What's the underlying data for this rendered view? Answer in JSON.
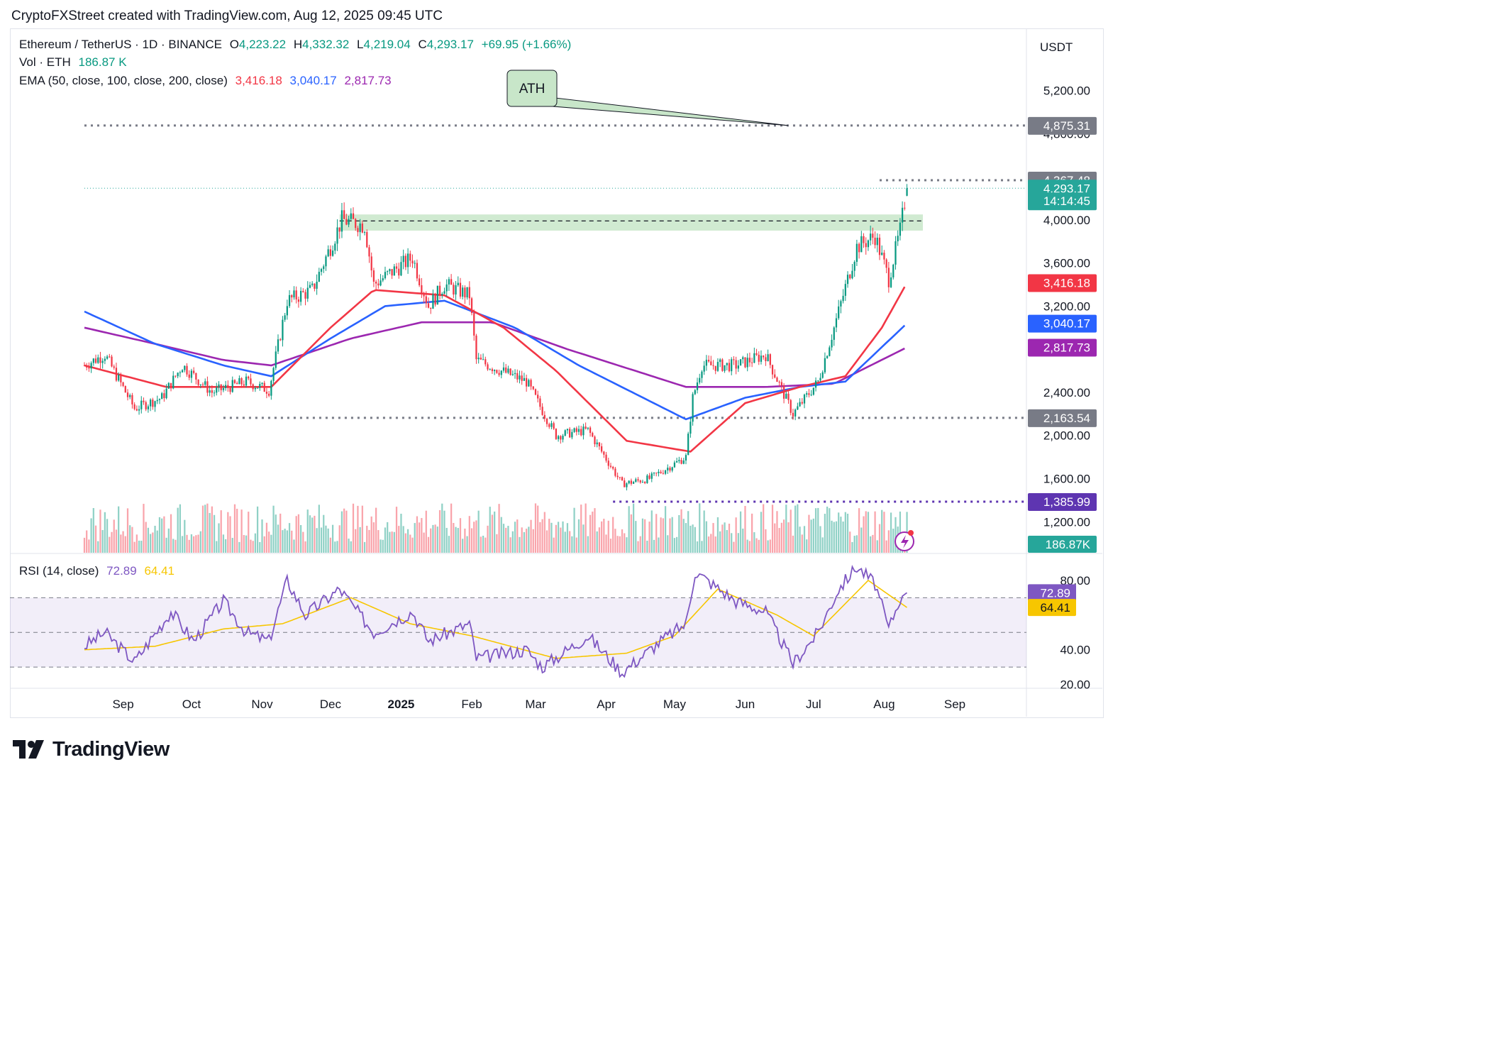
{
  "caption": "CryptoFXStreet created with TradingView.com, Aug 12, 2025 09:45 UTC",
  "legend": {
    "symbol": "Ethereum / TetherUS · 1D · BINANCE",
    "o_label": "O",
    "o_value": "4,223.22",
    "h_label": "H",
    "h_value": "4,332.32",
    "l_label": "L",
    "l_value": "4,219.04",
    "c_label": "C",
    "c_value": "4,293.17",
    "change": "+69.95 (+1.66%)",
    "vol_label": "Vol · ETH",
    "vol_value": "186.87 K",
    "ema_label": "EMA (50, close, 100, close, 200, close)",
    "ema50": "3,416.18",
    "ema100": "3,040.17",
    "ema200": "2,817.73"
  },
  "rsi_legend": {
    "label": "RSI (14, close)",
    "rsi": "72.89",
    "ma": "64.41"
  },
  "currency": "USDT",
  "ath_note": "ATH",
  "footer_logo": "TradingView",
  "colors": {
    "up": "#089981",
    "down": "#f23645",
    "ema50": "#f23645",
    "ema100": "#2962ff",
    "ema200": "#9c27b0",
    "rsi": "#7e57c2",
    "rsi_ma": "#f7c600",
    "zone": "#c8e6c9",
    "gray_label": "#787b86",
    "countdown_bg": "#26a69a"
  },
  "chart_data": {
    "type": "candlestick",
    "symbol": "ETHUSDT",
    "y_ticks": [
      "5,200.00",
      "4,800.00",
      "4,400.00",
      "4,000.00",
      "3,600.00",
      "3,200.00",
      "2,800.00",
      "2,400.00",
      "2,000.00",
      "1,600.00",
      "1,200.00"
    ],
    "x_ticks": [
      "Sep",
      "Oct",
      "Nov",
      "Dec",
      "2025",
      "Feb",
      "Mar",
      "Apr",
      "May",
      "Jun",
      "Jul",
      "Aug",
      "Sep"
    ],
    "ylim": [
      1000,
      5500
    ],
    "close_path": [
      {
        "x": "2024-08-15",
        "y": 2650
      },
      {
        "x": "2024-08-24",
        "y": 2750
      },
      {
        "x": "2024-09-06",
        "y": 2250
      },
      {
        "x": "2024-09-18",
        "y": 2350
      },
      {
        "x": "2024-09-27",
        "y": 2650
      },
      {
        "x": "2024-10-10",
        "y": 2400
      },
      {
        "x": "2024-10-25",
        "y": 2500
      },
      {
        "x": "2024-11-04",
        "y": 2420
      },
      {
        "x": "2024-11-12",
        "y": 3250
      },
      {
        "x": "2024-11-23",
        "y": 3350
      },
      {
        "x": "2024-12-06",
        "y": 4000
      },
      {
        "x": "2024-12-16",
        "y": 3950
      },
      {
        "x": "2024-12-20",
        "y": 3400
      },
      {
        "x": "2025-01-06",
        "y": 3650
      },
      {
        "x": "2025-01-13",
        "y": 3200
      },
      {
        "x": "2025-01-20",
        "y": 3400
      },
      {
        "x": "2025-01-31",
        "y": 3300
      },
      {
        "x": "2025-02-03",
        "y": 2700
      },
      {
        "x": "2025-02-25",
        "y": 2500
      },
      {
        "x": "2025-03-10",
        "y": 2000
      },
      {
        "x": "2025-03-24",
        "y": 2050
      },
      {
        "x": "2025-04-08",
        "y": 1550
      },
      {
        "x": "2025-04-20",
        "y": 1600
      },
      {
        "x": "2025-05-06",
        "y": 1800
      },
      {
        "x": "2025-05-09",
        "y": 2350
      },
      {
        "x": "2025-05-13",
        "y": 2650
      },
      {
        "x": "2025-05-28",
        "y": 2650
      },
      {
        "x": "2025-06-10",
        "y": 2750
      },
      {
        "x": "2025-06-22",
        "y": 2200
      },
      {
        "x": "2025-07-03",
        "y": 2500
      },
      {
        "x": "2025-07-10",
        "y": 3000
      },
      {
        "x": "2025-07-20",
        "y": 3750
      },
      {
        "x": "2025-07-28",
        "y": 3850
      },
      {
        "x": "2025-08-03",
        "y": 3450
      },
      {
        "x": "2025-08-08",
        "y": 3900
      },
      {
        "x": "2025-08-11",
        "y": 4300
      }
    ],
    "ema50": [
      {
        "x": "2024-08-15",
        "y": 2650
      },
      {
        "x": "2024-09-20",
        "y": 2450
      },
      {
        "x": "2024-10-15",
        "y": 2450
      },
      {
        "x": "2024-11-05",
        "y": 2450
      },
      {
        "x": "2024-12-01",
        "y": 3000
      },
      {
        "x": "2024-12-20",
        "y": 3350
      },
      {
        "x": "2025-01-20",
        "y": 3300
      },
      {
        "x": "2025-02-15",
        "y": 3000
      },
      {
        "x": "2025-03-10",
        "y": 2600
      },
      {
        "x": "2025-04-10",
        "y": 1950
      },
      {
        "x": "2025-05-08",
        "y": 1850
      },
      {
        "x": "2025-06-01",
        "y": 2300
      },
      {
        "x": "2025-06-25",
        "y": 2450
      },
      {
        "x": "2025-07-15",
        "y": 2550
      },
      {
        "x": "2025-07-31",
        "y": 3000
      },
      {
        "x": "2025-08-11",
        "y": 3416.18
      }
    ],
    "ema100": [
      {
        "x": "2024-08-15",
        "y": 3150
      },
      {
        "x": "2024-09-15",
        "y": 2850
      },
      {
        "x": "2024-10-15",
        "y": 2650
      },
      {
        "x": "2024-11-05",
        "y": 2550
      },
      {
        "x": "2024-12-01",
        "y": 2900
      },
      {
        "x": "2024-12-25",
        "y": 3200
      },
      {
        "x": "2025-01-20",
        "y": 3250
      },
      {
        "x": "2025-02-20",
        "y": 3000
      },
      {
        "x": "2025-03-20",
        "y": 2650
      },
      {
        "x": "2025-05-06",
        "y": 2150
      },
      {
        "x": "2025-06-01",
        "y": 2350
      },
      {
        "x": "2025-06-25",
        "y": 2450
      },
      {
        "x": "2025-07-15",
        "y": 2500
      },
      {
        "x": "2025-08-11",
        "y": 3040.17
      }
    ],
    "ema200": [
      {
        "x": "2024-08-15",
        "y": 3000
      },
      {
        "x": "2024-09-15",
        "y": 2850
      },
      {
        "x": "2024-10-15",
        "y": 2700
      },
      {
        "x": "2024-11-05",
        "y": 2650
      },
      {
        "x": "2024-12-10",
        "y": 2900
      },
      {
        "x": "2025-01-10",
        "y": 3050
      },
      {
        "x": "2025-02-10",
        "y": 3050
      },
      {
        "x": "2025-03-15",
        "y": 2800
      },
      {
        "x": "2025-05-06",
        "y": 2450
      },
      {
        "x": "2025-06-10",
        "y": 2450
      },
      {
        "x": "2025-07-10",
        "y": 2480
      },
      {
        "x": "2025-08-11",
        "y": 2817.73
      }
    ],
    "levels": [
      {
        "name": "ATH",
        "y": 4875.31,
        "from": "2024-08-15",
        "style": "dotted"
      },
      {
        "name": "resistance",
        "y": 4367.48,
        "from": "2025-07-30",
        "style": "dotted"
      },
      {
        "name": "last",
        "y": 4293.17,
        "from": "2024-08-15",
        "style": "dotted-thin"
      },
      {
        "name": "support",
        "y": 2163.54,
        "from": "2024-10-15",
        "style": "dotted"
      },
      {
        "name": "april-low",
        "y": 1385.99,
        "from": "2025-04-04",
        "style": "dotted"
      }
    ],
    "zone": {
      "from": "2024-12-05",
      "to": "2025-08-18",
      "low": 3900,
      "high": 4050,
      "mid": 3990
    },
    "price_labels": [
      {
        "text": "4,875.31",
        "y": 4875.31,
        "bg": "#787b86"
      },
      {
        "text": "4,367.48",
        "y": 4367.48,
        "bg": "#787b86"
      },
      {
        "text": "4,293.17",
        "y": 4293.17,
        "bg": "#26a69a"
      },
      {
        "text": "14:14:45",
        "y": 4175,
        "bg": "#26a69a"
      },
      {
        "text": "3,416.18",
        "y": 3416.18,
        "bg": "#f23645"
      },
      {
        "text": "3,040.17",
        "y": 3040.17,
        "bg": "#2962ff"
      },
      {
        "text": "2,817.73",
        "y": 2817.73,
        "bg": "#9c27b0"
      },
      {
        "text": "2,163.54",
        "y": 2163.54,
        "bg": "#787b86"
      },
      {
        "text": "1,385.99",
        "y": 1385.99,
        "bg": "#5e35b1"
      }
    ],
    "volume_label": "186.87K",
    "rsi_ticks": [
      "80.00",
      "40.00",
      "20.00"
    ],
    "rsi_path": [
      {
        "x": "2024-08-15",
        "y": 42
      },
      {
        "x": "2024-08-24",
        "y": 50
      },
      {
        "x": "2024-09-06",
        "y": 33
      },
      {
        "x": "2024-09-22",
        "y": 62
      },
      {
        "x": "2024-10-02",
        "y": 45
      },
      {
        "x": "2024-10-15",
        "y": 68
      },
      {
        "x": "2024-10-25",
        "y": 50
      },
      {
        "x": "2024-11-04",
        "y": 45
      },
      {
        "x": "2024-11-12",
        "y": 80
      },
      {
        "x": "2024-11-20",
        "y": 60
      },
      {
        "x": "2024-12-05",
        "y": 75
      },
      {
        "x": "2024-12-20",
        "y": 50
      },
      {
        "x": "2025-01-06",
        "y": 62
      },
      {
        "x": "2025-01-13",
        "y": 45
      },
      {
        "x": "2025-01-31",
        "y": 55
      },
      {
        "x": "2025-02-03",
        "y": 35
      },
      {
        "x": "2025-02-25",
        "y": 40
      },
      {
        "x": "2025-03-04",
        "y": 30
      },
      {
        "x": "2025-03-24",
        "y": 48
      },
      {
        "x": "2025-04-08",
        "y": 27
      },
      {
        "x": "2025-04-25",
        "y": 45
      },
      {
        "x": "2025-05-06",
        "y": 55
      },
      {
        "x": "2025-05-10",
        "y": 85
      },
      {
        "x": "2025-05-28",
        "y": 68
      },
      {
        "x": "2025-06-10",
        "y": 62
      },
      {
        "x": "2025-06-22",
        "y": 32
      },
      {
        "x": "2025-07-03",
        "y": 50
      },
      {
        "x": "2025-07-12",
        "y": 75
      },
      {
        "x": "2025-07-20",
        "y": 88
      },
      {
        "x": "2025-07-28",
        "y": 78
      },
      {
        "x": "2025-08-03",
        "y": 52
      },
      {
        "x": "2025-08-08",
        "y": 70
      },
      {
        "x": "2025-08-11",
        "y": 72.89
      }
    ],
    "rsi_ma_path": [
      {
        "x": "2024-08-15",
        "y": 40
      },
      {
        "x": "2024-09-15",
        "y": 42
      },
      {
        "x": "2024-10-15",
        "y": 52
      },
      {
        "x": "2024-11-10",
        "y": 55
      },
      {
        "x": "2024-12-10",
        "y": 70
      },
      {
        "x": "2025-01-05",
        "y": 55
      },
      {
        "x": "2025-02-01",
        "y": 48
      },
      {
        "x": "2025-03-10",
        "y": 35
      },
      {
        "x": "2025-04-10",
        "y": 38
      },
      {
        "x": "2025-05-01",
        "y": 48
      },
      {
        "x": "2025-05-20",
        "y": 75
      },
      {
        "x": "2025-06-15",
        "y": 60
      },
      {
        "x": "2025-07-01",
        "y": 48
      },
      {
        "x": "2025-07-25",
        "y": 80
      },
      {
        "x": "2025-08-11",
        "y": 64.41
      }
    ],
    "rsi_bands": {
      "upper": 70,
      "middle": 50,
      "lower": 30
    },
    "rsi_labels": [
      {
        "text": "72.89",
        "y": 72.89,
        "bg": "#7e57c2",
        "fg": "#ffffff"
      },
      {
        "text": "64.41",
        "y": 64.41,
        "bg": "#f7c600",
        "fg": "#131722"
      }
    ],
    "last_candle": {
      "open": 4223.22,
      "high": 4332.32,
      "low": 4219.04,
      "close": 4293.17
    }
  }
}
